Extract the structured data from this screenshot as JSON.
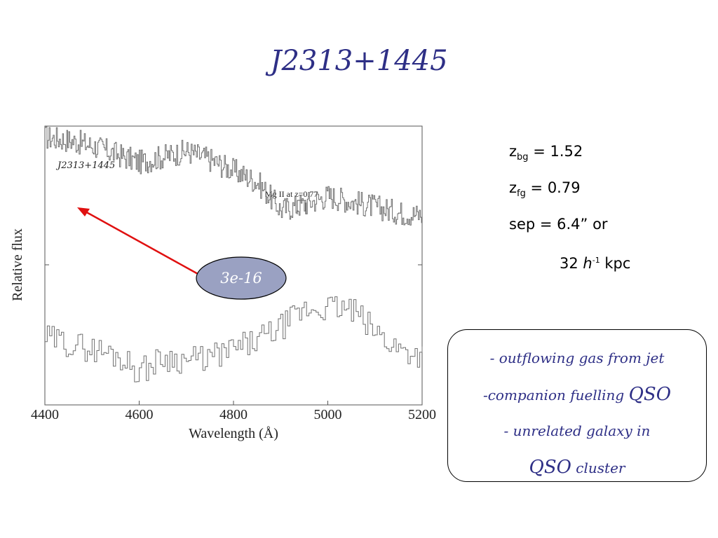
{
  "slide": {
    "title": "J2313+1445"
  },
  "chart_data": {
    "type": "line",
    "title": "J2313+1445",
    "xlabel": "Wavelength (Å)",
    "ylabel": "Relative flux",
    "xlim": [
      4400,
      5200
    ],
    "x_ticks": [
      "4400",
      "4600",
      "4800",
      "5000",
      "5200"
    ],
    "x_tick_values": [
      4400,
      4600,
      4800,
      5000,
      5200
    ],
    "annotation": "Mg II at z=0.77",
    "series": [
      {
        "x": [
          4400,
          4450,
          4500,
          4550,
          4600,
          4650,
          4700,
          4750,
          4800,
          4850,
          4900,
          4950,
          5000,
          5050,
          5100,
          5150,
          5200
        ],
        "values": [
          0.96,
          0.95,
          0.93,
          0.9,
          0.87,
          0.89,
          0.91,
          0.88,
          0.84,
          0.8,
          0.7,
          0.72,
          0.75,
          0.73,
          0.71,
          0.69,
          0.68
        ]
      },
      {
        "x": [
          4400,
          4450,
          4500,
          4550,
          4600,
          4650,
          4700,
          4750,
          4800,
          4850,
          4900,
          4950,
          5000,
          5050,
          5100,
          5150,
          5200
        ],
        "values": [
          0.24,
          0.22,
          0.2,
          0.18,
          0.12,
          0.17,
          0.16,
          0.17,
          0.2,
          0.23,
          0.28,
          0.34,
          0.35,
          0.34,
          0.26,
          0.2,
          0.18
        ]
      }
    ]
  },
  "callout": {
    "label": "3e-16",
    "fill": "#9aa1c2",
    "arrow_color": "#e01010"
  },
  "params": {
    "z_bg_z": "z",
    "z_bg_sub": "bg",
    "z_bg_value": " = 1.52",
    "z_fg_z": "z",
    "z_fg_sub": "fg",
    "z_fg_value": " = 0.79",
    "sep": "sep = 6.4” or",
    "kpc_num": "32 ",
    "kpc_h": "h",
    "kpc_sup": "-1",
    "kpc_unit": " kpc"
  },
  "options": {
    "line1": "- outflowing gas from jet",
    "line2_prefix": "-companion fuelling ",
    "line2_qso": "QSO",
    "line3": "- unrelated galaxy in",
    "line4_qso": "QSO",
    "line4_suffix": " cluster"
  },
  "colors": {
    "title": "#2e2f86",
    "spectrum": "#707070",
    "frame": "#555555"
  }
}
